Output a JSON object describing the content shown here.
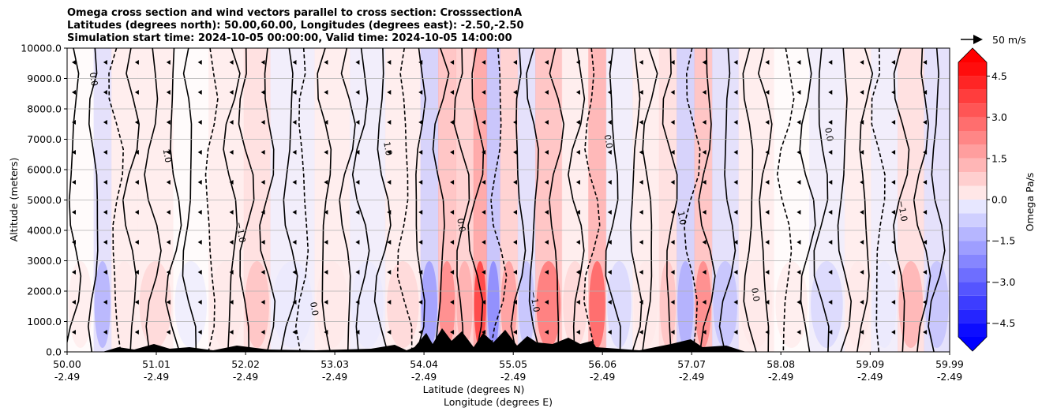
{
  "title_lines": [
    "Omega cross section and wind vectors parallel to cross section: CrosssectionA",
    "Latitudes (degrees north): 50.00,60.00, Longitudes (degrees east): -2.50,-2.50",
    "Simulation start time: 2024-10-05 00:00:00, Valid time: 2024-10-05 14:00:00"
  ],
  "chart_data": {
    "type": "heatmap",
    "ylabel": "Altitude (meters)",
    "xlabel_lat": "Latitude (degrees N)",
    "xlabel_lon": "Longitude (degrees E)",
    "ylim": [
      0,
      10000
    ],
    "xlim": [
      50.0,
      59.99
    ],
    "yticks": [
      "0.0",
      "1000.0",
      "2000.0",
      "3000.0",
      "4000.0",
      "5000.0",
      "6000.0",
      "7000.0",
      "8000.0",
      "9000.0",
      "10000.0"
    ],
    "xticks": [
      {
        "lat": "50.00",
        "lon": "-2.49",
        "value": 50.0
      },
      {
        "lat": "51.01",
        "lon": "-2.49",
        "value": 51.01
      },
      {
        "lat": "52.02",
        "lon": "-2.49",
        "value": 52.02
      },
      {
        "lat": "53.03",
        "lon": "-2.49",
        "value": 53.03
      },
      {
        "lat": "54.04",
        "lon": "-2.49",
        "value": 54.04
      },
      {
        "lat": "55.05",
        "lon": "-2.49",
        "value": 55.05
      },
      {
        "lat": "56.06",
        "lon": "-2.49",
        "value": 56.06
      },
      {
        "lat": "57.07",
        "lon": "-2.49",
        "value": 57.07
      },
      {
        "lat": "58.08",
        "lon": "-2.49",
        "value": 58.08
      },
      {
        "lat": "59.09",
        "lon": "-2.49",
        "value": 59.09
      },
      {
        "lat": "59.99",
        "lon": "-2.49",
        "value": 59.99
      }
    ],
    "colorbar": {
      "label": "Omega Pa/s",
      "range": [
        -5.0,
        5.0
      ],
      "ticks": [
        "4.5",
        "3.0",
        "1.5",
        "0.0",
        "−1.5",
        "−3.0",
        "−4.5"
      ],
      "tick_values": [
        4.5,
        3.0,
        1.5,
        0.0,
        -1.5,
        -3.0,
        -4.5
      ],
      "positive_color": "#ff0000",
      "negative_color": "#0000ff"
    },
    "contour_labels": [
      "0.0",
      "1.0",
      "−1.0",
      "0.0",
      "1.0",
      "0.0",
      "−1.0",
      "0.0",
      "1.0",
      "0.0",
      "0.0",
      "−1.0"
    ],
    "vector_key": "50 m/s",
    "omega_columns": [
      {
        "lat": 50.0,
        "value": 0.2
      },
      {
        "lat": 50.3,
        "value": -1.2
      },
      {
        "lat": 50.5,
        "value": 0.3
      },
      {
        "lat": 50.8,
        "value": 0.6
      },
      {
        "lat": 51.2,
        "value": -0.2
      },
      {
        "lat": 51.6,
        "value": 0.4
      },
      {
        "lat": 52.0,
        "value": 0.8
      },
      {
        "lat": 52.3,
        "value": -0.4
      },
      {
        "lat": 52.8,
        "value": 0.3
      },
      {
        "lat": 53.2,
        "value": -0.3
      },
      {
        "lat": 53.6,
        "value": 0.5
      },
      {
        "lat": 54.0,
        "value": -1.5
      },
      {
        "lat": 54.2,
        "value": 2.0
      },
      {
        "lat": 54.4,
        "value": 1.4
      },
      {
        "lat": 54.6,
        "value": 3.0
      },
      {
        "lat": 54.75,
        "value": -2.0
      },
      {
        "lat": 54.9,
        "value": 1.6
      },
      {
        "lat": 55.1,
        "value": -1.0
      },
      {
        "lat": 55.3,
        "value": 2.2
      },
      {
        "lat": 55.6,
        "value": 0.6
      },
      {
        "lat": 55.9,
        "value": 2.4
      },
      {
        "lat": 56.1,
        "value": -0.5
      },
      {
        "lat": 56.4,
        "value": 0.3
      },
      {
        "lat": 56.7,
        "value": 1.0
      },
      {
        "lat": 56.9,
        "value": -1.3
      },
      {
        "lat": 57.1,
        "value": 2.0
      },
      {
        "lat": 57.3,
        "value": -0.8
      },
      {
        "lat": 57.6,
        "value": 0.3
      },
      {
        "lat": 58.0,
        "value": 0.2
      },
      {
        "lat": 58.4,
        "value": -0.5
      },
      {
        "lat": 58.8,
        "value": 0.3
      },
      {
        "lat": 59.1,
        "value": -0.3
      },
      {
        "lat": 59.4,
        "value": 1.2
      },
      {
        "lat": 59.7,
        "value": -0.8
      }
    ]
  }
}
